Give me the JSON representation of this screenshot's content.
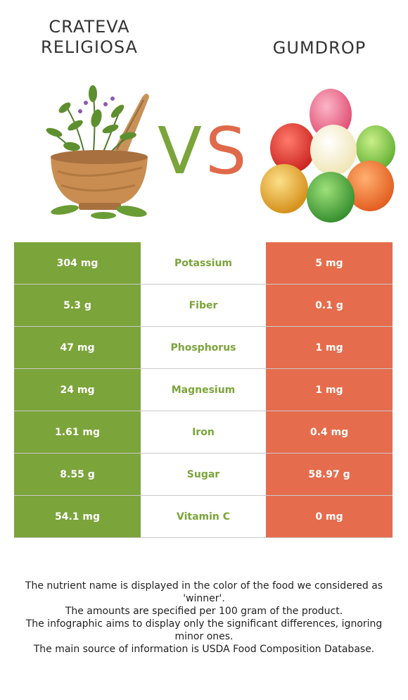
{
  "food_left": {
    "name": "Crateva religiosa",
    "color": "#7ba43a",
    "image_icon": "herbs-mortar-pestle-icon"
  },
  "food_right": {
    "name": "Gumdrop",
    "color": "#e56d4d",
    "image_icon": "gumdrops-candy-icon"
  },
  "vs": {
    "v": "V",
    "s": "S"
  },
  "nutrients": [
    {
      "name": "Potassium",
      "left": "304 mg",
      "right": "5 mg",
      "winner": "left"
    },
    {
      "name": "Fiber",
      "left": "5.3 g",
      "right": "0.1 g",
      "winner": "left"
    },
    {
      "name": "Phosphorus",
      "left": "47 mg",
      "right": "1 mg",
      "winner": "left"
    },
    {
      "name": "Magnesium",
      "left": "24 mg",
      "right": "1 mg",
      "winner": "left"
    },
    {
      "name": "Iron",
      "left": "1.61 mg",
      "right": "0.4 mg",
      "winner": "left"
    },
    {
      "name": "Sugar",
      "left": "8.55 g",
      "right": "58.97 g",
      "winner": "left"
    },
    {
      "name": "Vitamin C",
      "left": "54.1 mg",
      "right": "0 mg",
      "winner": "left"
    }
  ],
  "notes": [
    "The nutrient name is displayed in the color of the food we considered as 'winner'.",
    "The amounts are specified per 100 gram of the product.",
    "The infographic aims to display only the significant differences, ignoring minor ones.",
    "The main source of information is USDA Food Composition Database."
  ]
}
